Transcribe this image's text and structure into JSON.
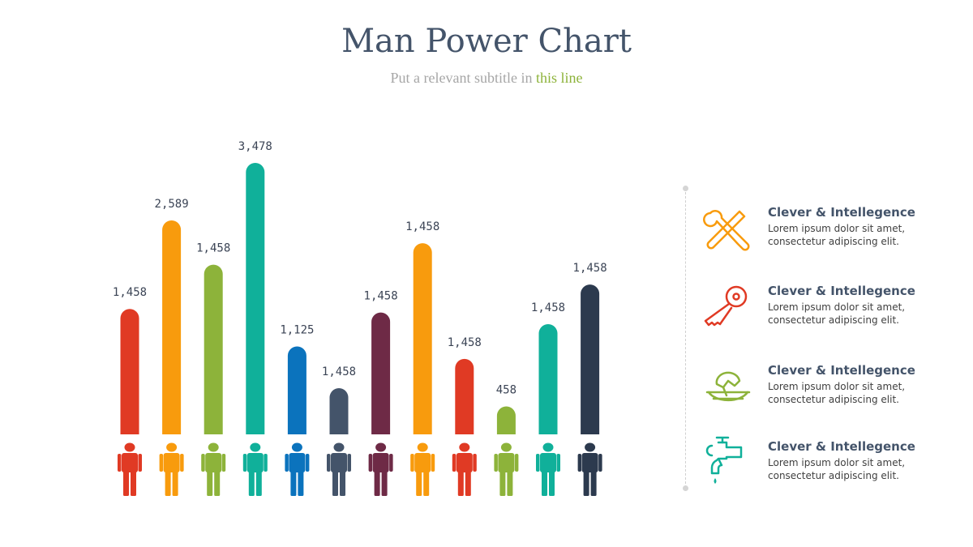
{
  "header": {
    "title": "Man Power Chart",
    "subtitle_prefix": "Put a relevant subtitle in ",
    "subtitle_accent": "this line"
  },
  "chart_data": {
    "type": "bar",
    "title": "Man Power Chart",
    "subtitle": "Put a relevant subtitle in this line",
    "xlabel": "",
    "ylabel": "",
    "grid": false,
    "labels": [
      "1,458",
      "2,589",
      "1,458",
      "3,478",
      "1,125",
      "1,458",
      "1,458",
      "1,458",
      "1,458",
      "458",
      "1,458",
      "1,458"
    ],
    "values": [
      1458,
      2589,
      1458,
      3478,
      1125,
      1458,
      1458,
      1458,
      1458,
      458,
      1458,
      1458
    ],
    "heights": [
      0.462,
      0.788,
      0.625,
      1.0,
      0.324,
      0.17,
      0.449,
      0.704,
      0.278,
      0.103,
      0.406,
      0.552
    ],
    "colors": [
      "#e03a24",
      "#f89b0d",
      "#8db33a",
      "#10b09a",
      "#0b73bd",
      "#44546a",
      "#6e2a46",
      "#f89b0d",
      "#e03a24",
      "#8db33a",
      "#10b09a",
      "#2c3a4e"
    ]
  },
  "legend": {
    "items": [
      {
        "title": "Clever & Intellegence",
        "text": "Lorem ipsum dolor sit amet, consectetur adipiscing elit.",
        "icon": "tools-icon",
        "color": "#f89b0d"
      },
      {
        "title": "Clever & Intellegence",
        "text": "Lorem ipsum dolor sit amet, consectetur adipiscing elit.",
        "icon": "key-icon",
        "color": "#e03a24"
      },
      {
        "title": "Clever & Intellegence",
        "text": "Lorem ipsum dolor sit amet, consectetur adipiscing elit.",
        "icon": "juicer-icon",
        "color": "#8db33a"
      },
      {
        "title": "Clever & Intellegence",
        "text": "Lorem ipsum dolor sit amet, consectetur adipiscing elit.",
        "icon": "faucet-icon",
        "color": "#10b09a"
      }
    ]
  }
}
